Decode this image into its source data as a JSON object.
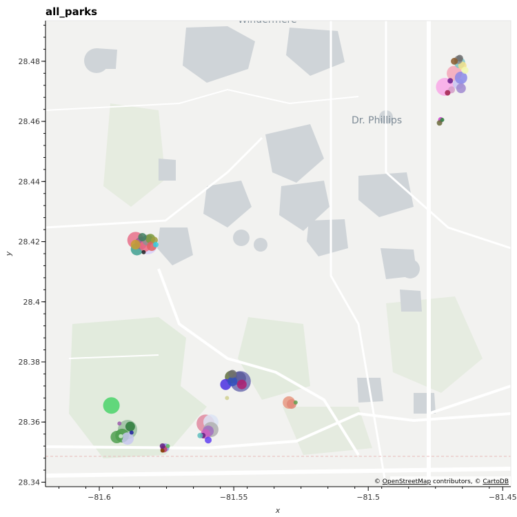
{
  "title": "all_parks",
  "attribution": {
    "prefix": "© ",
    "osm_link": "OpenStreetMap",
    "middle": " contributors, © ",
    "carto_link": "CartoDB"
  },
  "map_labels": {
    "dr_phillips": "Dr. Phillips",
    "windermere": "Windermere"
  },
  "chart_data": {
    "type": "scatter",
    "title": "all_parks",
    "xlabel": "x",
    "ylabel": "y",
    "xlim": [
      -81.62,
      -81.447
    ],
    "ylim": [
      28.3385,
      28.4935
    ],
    "xticks": [
      -81.6,
      -81.55,
      -81.5,
      -81.45
    ],
    "xtick_labels": [
      "−81.6",
      "−81.55",
      "−81.5",
      "−81.45"
    ],
    "yticks": [
      28.34,
      28.36,
      28.38,
      28.4,
      28.42,
      28.44,
      28.46,
      28.48
    ],
    "ytick_labels": [
      "28.34",
      "28.36",
      "28.38",
      "28.4",
      "28.42",
      "28.44",
      "28.46",
      "28.48"
    ],
    "grid": false,
    "basemap": "CartoDB Positron",
    "points": [
      {
        "x": -81.4715,
        "y": 28.4715,
        "s": 13,
        "color": "#f9a8e8"
      },
      {
        "x": -81.468,
        "y": 28.476,
        "s": 11,
        "color": "#f4a6b8"
      },
      {
        "x": -81.4665,
        "y": 28.4725,
        "s": 8,
        "color": "#c8c4f0"
      },
      {
        "x": -81.4655,
        "y": 28.4745,
        "s": 9,
        "color": "#8a8ae8"
      },
      {
        "x": -81.466,
        "y": 28.4795,
        "s": 8,
        "color": "#7ec8c8"
      },
      {
        "x": -81.465,
        "y": 28.4785,
        "s": 6,
        "color": "#f6e08a"
      },
      {
        "x": -81.4665,
        "y": 28.4805,
        "s": 6,
        "color": "#888888"
      },
      {
        "x": -81.466,
        "y": 28.481,
        "s": 5,
        "color": "#707070"
      },
      {
        "x": -81.468,
        "y": 28.48,
        "s": 5,
        "color": "#8a5a2b"
      },
      {
        "x": -81.464,
        "y": 28.477,
        "s": 5,
        "color": "#f0f8b0"
      },
      {
        "x": -81.4655,
        "y": 28.471,
        "s": 7,
        "color": "#a08ad0"
      },
      {
        "x": -81.469,
        "y": 28.4705,
        "s": 5,
        "color": "#d4a0c8"
      },
      {
        "x": -81.4695,
        "y": 28.4735,
        "s": 4,
        "color": "#6a1a8a"
      },
      {
        "x": -81.4705,
        "y": 28.4695,
        "s": 4,
        "color": "#a0204a"
      },
      {
        "x": -81.473,
        "y": 28.4605,
        "s": 4,
        "color": "#d040d0"
      },
      {
        "x": -81.4735,
        "y": 28.4595,
        "s": 4,
        "color": "#6a6a3a"
      },
      {
        "x": -81.4725,
        "y": 28.4605,
        "s": 3,
        "color": "#2a8a3a"
      },
      {
        "x": -81.582,
        "y": 28.419,
        "s": 14,
        "color": "#d8d0f8"
      },
      {
        "x": -81.5865,
        "y": 28.4205,
        "s": 12,
        "color": "#e8708a"
      },
      {
        "x": -81.586,
        "y": 28.4175,
        "s": 9,
        "color": "#40a090"
      },
      {
        "x": -81.5845,
        "y": 28.4195,
        "s": 9,
        "color": "#9a5a9a"
      },
      {
        "x": -81.583,
        "y": 28.4185,
        "s": 8,
        "color": "#f06a80"
      },
      {
        "x": -81.582,
        "y": 28.4205,
        "s": 8,
        "color": "#909090"
      },
      {
        "x": -81.581,
        "y": 28.421,
        "s": 7,
        "color": "#7a9a3a"
      },
      {
        "x": -81.5805,
        "y": 28.4185,
        "s": 7,
        "color": "#e06060"
      },
      {
        "x": -81.5865,
        "y": 28.419,
        "s": 7,
        "color": "#c8a030"
      },
      {
        "x": -81.584,
        "y": 28.4215,
        "s": 6,
        "color": "#408060"
      },
      {
        "x": -81.5795,
        "y": 28.4205,
        "s": 5,
        "color": "#a0a040"
      },
      {
        "x": -81.579,
        "y": 28.419,
        "s": 4,
        "color": "#30d0e0"
      },
      {
        "x": -81.5835,
        "y": 28.4165,
        "s": 3,
        "color": "#202020"
      },
      {
        "x": -81.5475,
        "y": 28.3735,
        "s": 15,
        "color": "#7070b0"
      },
      {
        "x": -81.551,
        "y": 28.375,
        "s": 9,
        "color": "#607040"
      },
      {
        "x": -81.548,
        "y": 28.3745,
        "s": 10,
        "color": "#5a5a9a"
      },
      {
        "x": -81.553,
        "y": 28.3725,
        "s": 8,
        "color": "#4a30e0"
      },
      {
        "x": -81.5505,
        "y": 28.3735,
        "s": 7,
        "color": "#3050c0"
      },
      {
        "x": -81.547,
        "y": 28.3725,
        "s": 7,
        "color": "#b02070"
      },
      {
        "x": -81.5505,
        "y": 28.376,
        "s": 6,
        "color": "#707070"
      },
      {
        "x": -81.5525,
        "y": 28.368,
        "s": 3,
        "color": "#d0d090"
      },
      {
        "x": -81.5295,
        "y": 28.3665,
        "s": 9,
        "color": "#e89880"
      },
      {
        "x": -81.5285,
        "y": 28.366,
        "s": 7,
        "color": "#e08878"
      },
      {
        "x": -81.527,
        "y": 28.3665,
        "s": 3,
        "color": "#60a050"
      },
      {
        "x": -81.5605,
        "y": 28.3595,
        "s": 13,
        "color": "#e08aa0"
      },
      {
        "x": -81.5585,
        "y": 28.36,
        "s": 11,
        "color": "#dce4f4"
      },
      {
        "x": -81.5585,
        "y": 28.3575,
        "s": 11,
        "color": "#b0b0b0"
      },
      {
        "x": -81.5595,
        "y": 28.357,
        "s": 8,
        "color": "#a070c0"
      },
      {
        "x": -81.5605,
        "y": 28.356,
        "s": 7,
        "color": "#d060c0"
      },
      {
        "x": -81.5615,
        "y": 28.3555,
        "s": 4,
        "color": "#602080"
      },
      {
        "x": -81.5595,
        "y": 28.354,
        "s": 5,
        "color": "#6040f0"
      },
      {
        "x": -81.5625,
        "y": 28.3555,
        "s": 4,
        "color": "#60c0c0"
      },
      {
        "x": -81.5955,
        "y": 28.3655,
        "s": 12,
        "color": "#4ad46a"
      },
      {
        "x": -81.5895,
        "y": 28.3575,
        "s": 14,
        "color": "#9ac0a0"
      },
      {
        "x": -81.5915,
        "y": 28.3555,
        "s": 10,
        "color": "#4a9a4a"
      },
      {
        "x": -81.5895,
        "y": 28.3545,
        "s": 9,
        "color": "#c8c8f0"
      },
      {
        "x": -81.5935,
        "y": 28.355,
        "s": 9,
        "color": "#50a050"
      },
      {
        "x": -81.5885,
        "y": 28.3585,
        "s": 7,
        "color": "#2a7a3a"
      },
      {
        "x": -81.5925,
        "y": 28.3595,
        "s": 3,
        "color": "#9a5aaa"
      },
      {
        "x": -81.588,
        "y": 28.3565,
        "s": 3,
        "color": "#2020a0"
      },
      {
        "x": -81.592,
        "y": 28.3553,
        "s": 3,
        "color": "#d0f0d0"
      },
      {
        "x": -81.5755,
        "y": 28.3515,
        "s": 6,
        "color": "#9090f0"
      },
      {
        "x": -81.576,
        "y": 28.351,
        "s": 5,
        "color": "#c04060"
      },
      {
        "x": -81.5765,
        "y": 28.352,
        "s": 4,
        "color": "#602080"
      },
      {
        "x": -81.5745,
        "y": 28.352,
        "s": 3,
        "color": "#60c060"
      },
      {
        "x": -81.5765,
        "y": 28.3505,
        "s": 3,
        "color": "#804000"
      }
    ]
  }
}
